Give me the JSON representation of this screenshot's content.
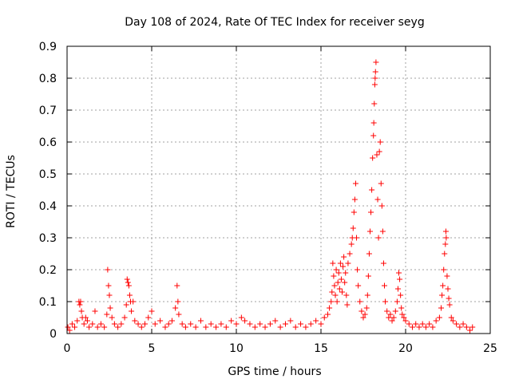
{
  "chart_data": {
    "type": "scatter",
    "title": "Day 108 of 2024, Rate Of TEC Index for receiver seyg",
    "xlabel": "GPS time / hours",
    "ylabel": "ROTI / TECUs",
    "xlim": [
      0,
      25
    ],
    "ylim": [
      0,
      0.9
    ],
    "xticks": [
      0,
      5,
      10,
      15,
      20,
      25
    ],
    "xtick_labels": [
      "0",
      "5",
      "10",
      "15",
      "20",
      "25"
    ],
    "yticks": [
      0,
      0.1,
      0.2,
      0.3,
      0.4,
      0.5,
      0.6,
      0.7,
      0.8,
      0.9
    ],
    "ytick_labels": [
      "0",
      "0.1",
      "0.2",
      "0.3",
      "0.4",
      "0.5",
      "0.6",
      "0.7",
      "0.8",
      "0.9"
    ],
    "grid": true,
    "marker": "+",
    "color": "#ff0000",
    "series": [
      {
        "name": "ROTI",
        "points": [
          [
            0.05,
            0.02
          ],
          [
            0.15,
            0.01
          ],
          [
            0.3,
            0.03
          ],
          [
            0.45,
            0.02
          ],
          [
            0.6,
            0.04
          ],
          [
            0.7,
            0.1
          ],
          [
            0.75,
            0.09
          ],
          [
            0.8,
            0.1
          ],
          [
            0.85,
            0.07
          ],
          [
            0.9,
            0.05
          ],
          [
            1.0,
            0.03
          ],
          [
            1.1,
            0.05
          ],
          [
            1.2,
            0.04
          ],
          [
            1.3,
            0.02
          ],
          [
            1.5,
            0.03
          ],
          [
            1.65,
            0.07
          ],
          [
            1.8,
            0.02
          ],
          [
            2.0,
            0.03
          ],
          [
            2.2,
            0.02
          ],
          [
            2.35,
            0.06
          ],
          [
            2.4,
            0.2
          ],
          [
            2.45,
            0.15
          ],
          [
            2.5,
            0.12
          ],
          [
            2.55,
            0.08
          ],
          [
            2.65,
            0.05
          ],
          [
            2.8,
            0.03
          ],
          [
            3.0,
            0.02
          ],
          [
            3.2,
            0.03
          ],
          [
            3.4,
            0.05
          ],
          [
            3.5,
            0.09
          ],
          [
            3.55,
            0.17
          ],
          [
            3.6,
            0.16
          ],
          [
            3.65,
            0.15
          ],
          [
            3.7,
            0.12
          ],
          [
            3.75,
            0.1
          ],
          [
            3.8,
            0.07
          ],
          [
            3.9,
            0.1
          ],
          [
            4.0,
            0.04
          ],
          [
            4.2,
            0.03
          ],
          [
            4.4,
            0.02
          ],
          [
            4.6,
            0.03
          ],
          [
            4.8,
            0.05
          ],
          [
            5.0,
            0.07
          ],
          [
            5.2,
            0.03
          ],
          [
            5.5,
            0.04
          ],
          [
            5.8,
            0.02
          ],
          [
            6.0,
            0.03
          ],
          [
            6.2,
            0.04
          ],
          [
            6.4,
            0.08
          ],
          [
            6.5,
            0.15
          ],
          [
            6.55,
            0.1
          ],
          [
            6.6,
            0.06
          ],
          [
            6.8,
            0.03
          ],
          [
            7.0,
            0.02
          ],
          [
            7.3,
            0.03
          ],
          [
            7.6,
            0.02
          ],
          [
            7.9,
            0.04
          ],
          [
            8.2,
            0.02
          ],
          [
            8.5,
            0.03
          ],
          [
            8.8,
            0.02
          ],
          [
            9.1,
            0.03
          ],
          [
            9.4,
            0.02
          ],
          [
            9.7,
            0.04
          ],
          [
            10.0,
            0.03
          ],
          [
            10.3,
            0.05
          ],
          [
            10.5,
            0.04
          ],
          [
            10.8,
            0.03
          ],
          [
            11.1,
            0.02
          ],
          [
            11.4,
            0.03
          ],
          [
            11.7,
            0.02
          ],
          [
            12.0,
            0.03
          ],
          [
            12.3,
            0.04
          ],
          [
            12.6,
            0.02
          ],
          [
            12.9,
            0.03
          ],
          [
            13.2,
            0.04
          ],
          [
            13.5,
            0.02
          ],
          [
            13.8,
            0.03
          ],
          [
            14.1,
            0.02
          ],
          [
            14.4,
            0.03
          ],
          [
            14.7,
            0.04
          ],
          [
            15.0,
            0.03
          ],
          [
            15.2,
            0.05
          ],
          [
            15.4,
            0.06
          ],
          [
            15.5,
            0.08
          ],
          [
            15.6,
            0.1
          ],
          [
            15.65,
            0.13
          ],
          [
            15.7,
            0.22
          ],
          [
            15.75,
            0.18
          ],
          [
            15.8,
            0.15
          ],
          [
            15.85,
            0.12
          ],
          [
            15.9,
            0.2
          ],
          [
            15.95,
            0.1
          ],
          [
            16.0,
            0.16
          ],
          [
            16.05,
            0.19
          ],
          [
            16.1,
            0.14
          ],
          [
            16.15,
            0.22
          ],
          [
            16.2,
            0.17
          ],
          [
            16.25,
            0.13
          ],
          [
            16.3,
            0.21
          ],
          [
            16.35,
            0.24
          ],
          [
            16.4,
            0.16
          ],
          [
            16.45,
            0.19
          ],
          [
            16.5,
            0.12
          ],
          [
            16.55,
            0.09
          ],
          [
            16.6,
            0.22
          ],
          [
            16.7,
            0.25
          ],
          [
            16.8,
            0.28
          ],
          [
            16.85,
            0.3
          ],
          [
            16.9,
            0.33
          ],
          [
            16.95,
            0.38
          ],
          [
            17.0,
            0.42
          ],
          [
            17.05,
            0.47
          ],
          [
            17.1,
            0.3
          ],
          [
            17.15,
            0.2
          ],
          [
            17.2,
            0.15
          ],
          [
            17.3,
            0.1
          ],
          [
            17.4,
            0.07
          ],
          [
            17.5,
            0.05
          ],
          [
            17.6,
            0.06
          ],
          [
            17.7,
            0.08
          ],
          [
            17.75,
            0.12
          ],
          [
            17.8,
            0.18
          ],
          [
            17.85,
            0.25
          ],
          [
            17.9,
            0.32
          ],
          [
            17.95,
            0.38
          ],
          [
            18.0,
            0.45
          ],
          [
            18.05,
            0.55
          ],
          [
            18.1,
            0.62
          ],
          [
            18.12,
            0.66
          ],
          [
            18.15,
            0.72
          ],
          [
            18.18,
            0.78
          ],
          [
            18.2,
            0.8
          ],
          [
            18.22,
            0.82
          ],
          [
            18.25,
            0.85
          ],
          [
            18.3,
            0.56
          ],
          [
            18.35,
            0.42
          ],
          [
            18.4,
            0.3
          ],
          [
            18.45,
            0.57
          ],
          [
            18.5,
            0.6
          ],
          [
            18.55,
            0.47
          ],
          [
            18.6,
            0.4
          ],
          [
            18.65,
            0.32
          ],
          [
            18.7,
            0.22
          ],
          [
            18.75,
            0.15
          ],
          [
            18.8,
            0.1
          ],
          [
            18.9,
            0.07
          ],
          [
            19.0,
            0.05
          ],
          [
            19.1,
            0.06
          ],
          [
            19.2,
            0.04
          ],
          [
            19.3,
            0.05
          ],
          [
            19.4,
            0.07
          ],
          [
            19.5,
            0.1
          ],
          [
            19.55,
            0.14
          ],
          [
            19.6,
            0.19
          ],
          [
            19.65,
            0.17
          ],
          [
            19.7,
            0.12
          ],
          [
            19.75,
            0.08
          ],
          [
            19.8,
            0.06
          ],
          [
            19.9,
            0.05
          ],
          [
            20.0,
            0.04
          ],
          [
            20.2,
            0.03
          ],
          [
            20.4,
            0.02
          ],
          [
            20.6,
            0.03
          ],
          [
            20.8,
            0.02
          ],
          [
            21.0,
            0.03
          ],
          [
            21.2,
            0.02
          ],
          [
            21.4,
            0.03
          ],
          [
            21.6,
            0.02
          ],
          [
            21.8,
            0.04
          ],
          [
            22.0,
            0.05
          ],
          [
            22.1,
            0.08
          ],
          [
            22.15,
            0.12
          ],
          [
            22.2,
            0.15
          ],
          [
            22.25,
            0.2
          ],
          [
            22.3,
            0.25
          ],
          [
            22.35,
            0.28
          ],
          [
            22.38,
            0.32
          ],
          [
            22.4,
            0.3
          ],
          [
            22.45,
            0.18
          ],
          [
            22.5,
            0.14
          ],
          [
            22.55,
            0.11
          ],
          [
            22.6,
            0.09
          ],
          [
            22.7,
            0.05
          ],
          [
            22.8,
            0.04
          ],
          [
            23.0,
            0.03
          ],
          [
            23.2,
            0.02
          ],
          [
            23.4,
            0.03
          ],
          [
            23.6,
            0.02
          ],
          [
            23.8,
            0.01
          ],
          [
            23.95,
            0.02
          ]
        ]
      }
    ]
  }
}
